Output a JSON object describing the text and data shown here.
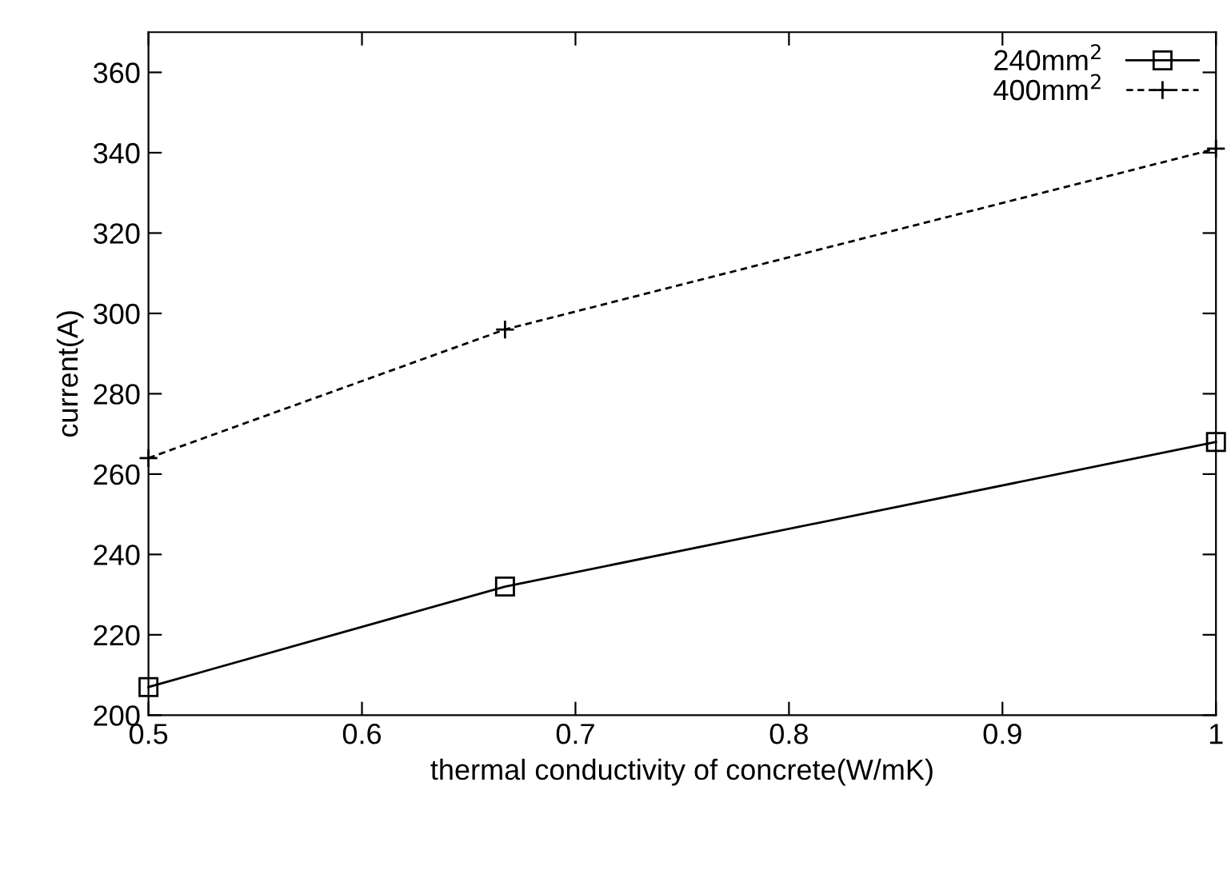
{
  "chart_data": {
    "type": "line",
    "xlabel": "thermal conductivity of concrete(W/mK)",
    "ylabel": "current(A)",
    "x": [
      0.5,
      0.667,
      1
    ],
    "series": [
      {
        "name": "240mm$^{2}$",
        "color": "#000000",
        "values": [
          207,
          232,
          268
        ],
        "marker": "square",
        "line_style": "solid"
      },
      {
        "name": "400mm$^{2}$",
        "color": "#000000",
        "values": [
          264,
          296,
          341
        ],
        "marker": "cross",
        "line_style": "dashed"
      }
    ],
    "xlim": [
      0.5,
      1
    ],
    "xticks": [
      0.5,
      0.6,
      0.7,
      0.8,
      0.9,
      1
    ],
    "ylim": [
      200,
      370
    ],
    "yticks": [
      200,
      220,
      240,
      260,
      280,
      300,
      320,
      340,
      360
    ],
    "grid": false,
    "legend": "top right"
  }
}
